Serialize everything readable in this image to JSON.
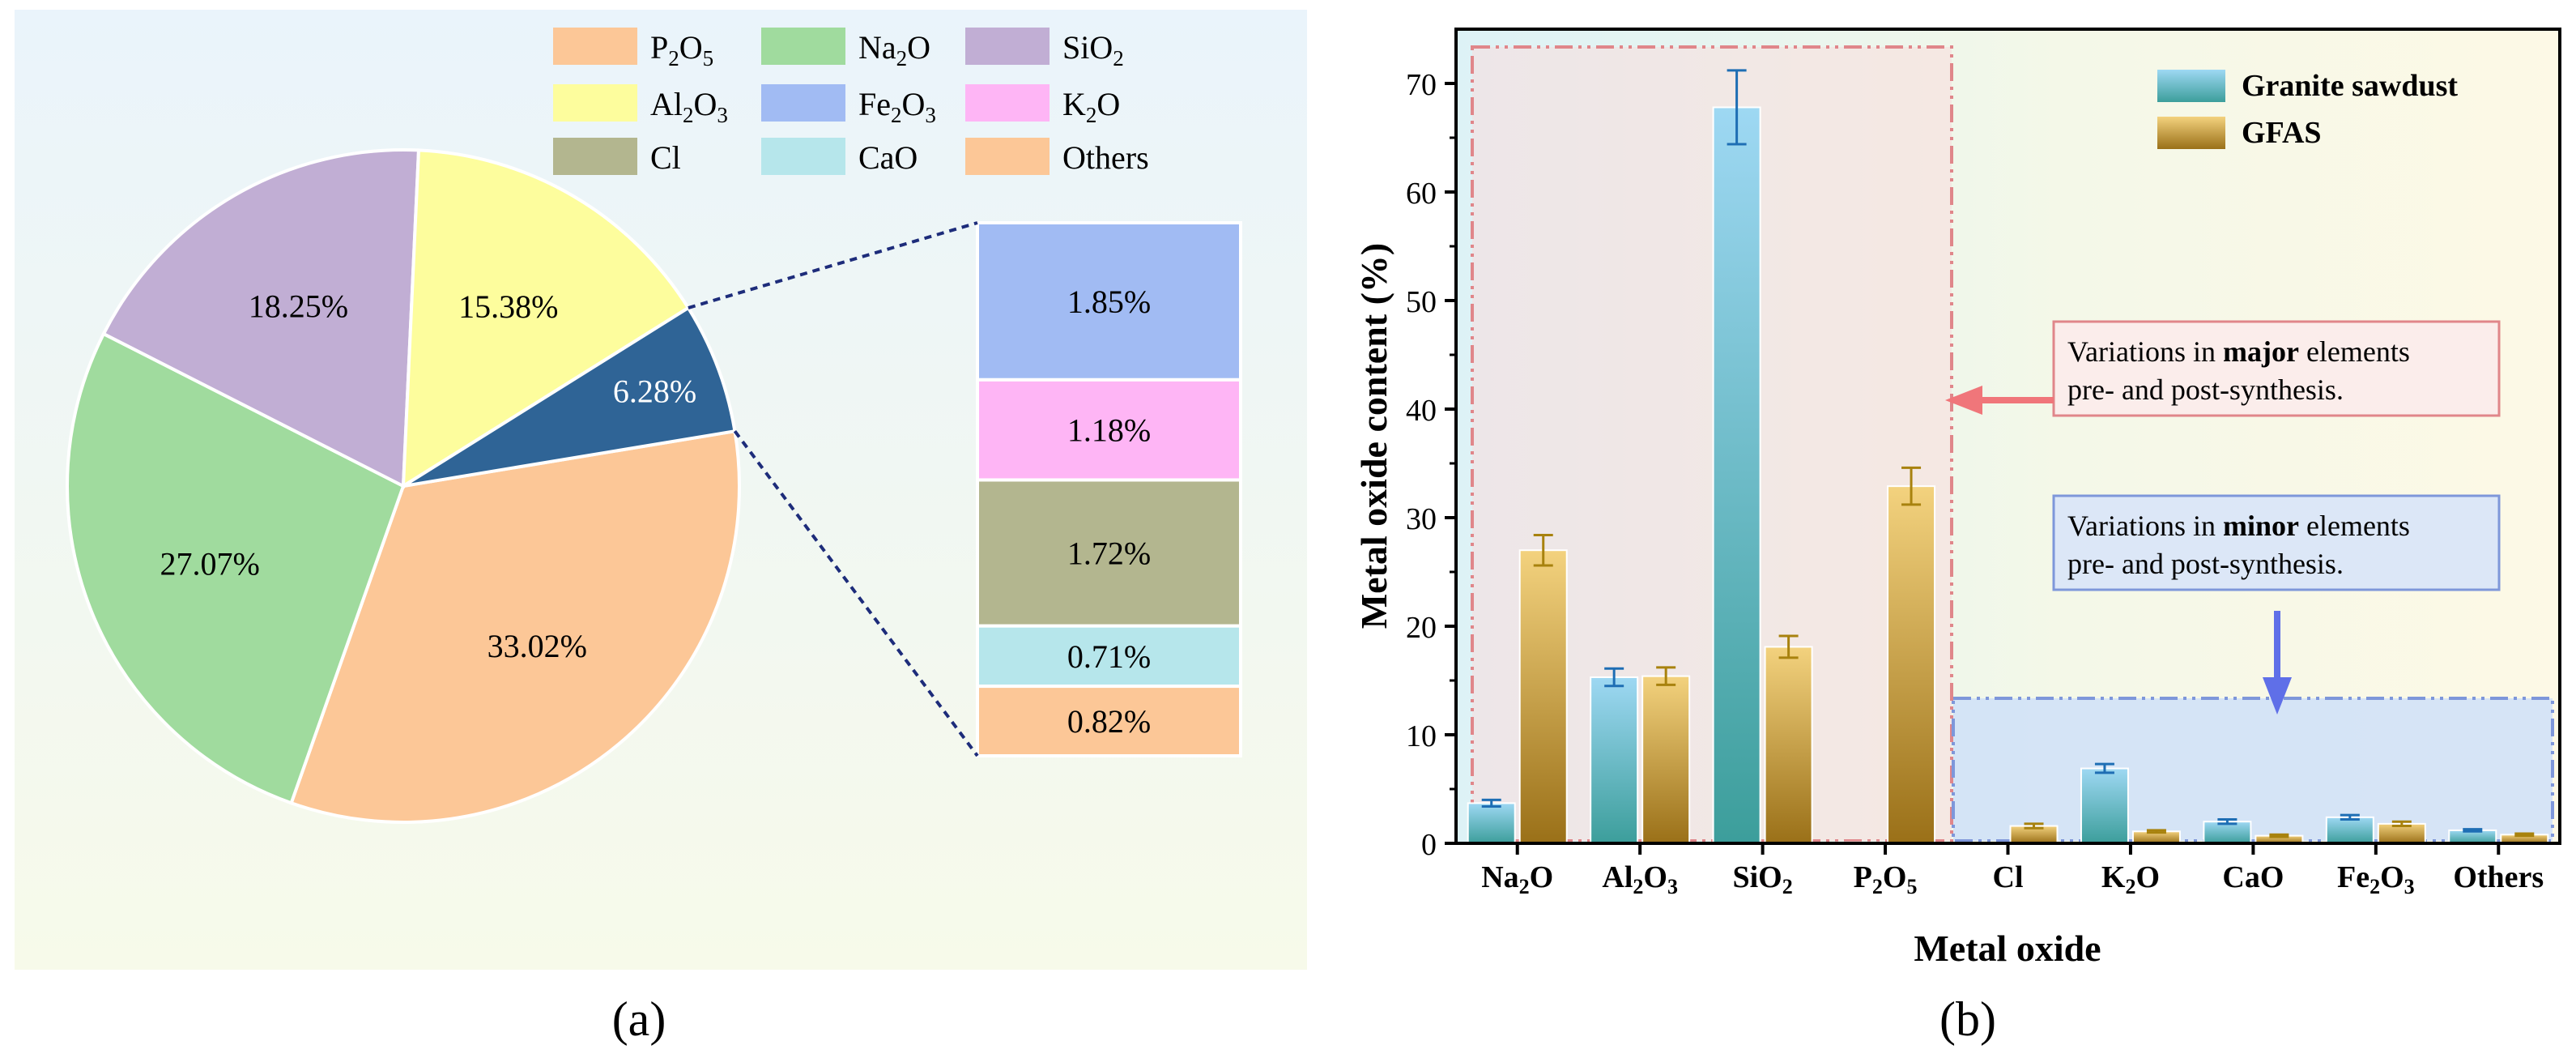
{
  "panel_labels": {
    "a": "(a)",
    "b": "(b)"
  },
  "colors": {
    "P2O5": "#FCC797",
    "Na2O": "#A0DB9E",
    "SiO2": "#C1AED4",
    "Al2O3": "#FDFD9D",
    "Fe2O3": "#A1BBF3",
    "K2O": "#FEB5F5",
    "Cl": "#B3B68F",
    "CaO": "#B6E6EB",
    "Others": "#FCC797",
    "minor_slice": "#2F6496",
    "granite_top": "#9ED8F3",
    "granite_bottom": "#3C9E9B",
    "gfas_top": "#F3D27E",
    "gfas_bottom": "#9A7018",
    "major_box": "#E0868A",
    "minor_box": "#7E97DA",
    "arrow_major": "#F0767A",
    "arrow_minor": "#5F6FE8"
  },
  "chart_data": [
    {
      "type": "pie",
      "legend": [
        {
          "key": "P2O5",
          "base": "P",
          "sub1": "2",
          "mid": "O",
          "sub2": "5"
        },
        {
          "key": "Na2O",
          "base": "Na",
          "sub1": "2",
          "mid": "O",
          "sub2": ""
        },
        {
          "key": "SiO2",
          "base": "SiO",
          "sub1": "2",
          "mid": "",
          "sub2": ""
        },
        {
          "key": "Al2O3",
          "base": "Al",
          "sub1": "2",
          "mid": "O",
          "sub2": "3"
        },
        {
          "key": "Fe2O3",
          "base": "Fe",
          "sub1": "2",
          "mid": "O",
          "sub2": "3"
        },
        {
          "key": "K2O",
          "base": "K",
          "sub1": "2",
          "mid": "O",
          "sub2": ""
        },
        {
          "key": "Cl",
          "base": "Cl",
          "sub1": "",
          "mid": "",
          "sub2": ""
        },
        {
          "key": "CaO",
          "base": "CaO",
          "sub1": "",
          "mid": "",
          "sub2": ""
        },
        {
          "key": "Others",
          "base": "Others",
          "sub1": "",
          "mid": "",
          "sub2": ""
        }
      ],
      "slices": [
        {
          "key": "P2O5",
          "value": 33.02,
          "label": "33.02%"
        },
        {
          "key": "Na2O",
          "value": 27.07,
          "label": "27.07%"
        },
        {
          "key": "SiO2",
          "value": 18.25,
          "label": "18.25%"
        },
        {
          "key": "Al2O3",
          "value": 15.38,
          "label": "15.38%"
        },
        {
          "key": "minor_slice",
          "value": 6.28,
          "label": "6.28%"
        }
      ],
      "breakdown": [
        {
          "key": "Fe2O3",
          "value": 1.85,
          "label": "1.85%"
        },
        {
          "key": "K2O",
          "value": 1.18,
          "label": "1.18%"
        },
        {
          "key": "Cl",
          "value": 1.72,
          "label": "1.72%"
        },
        {
          "key": "CaO",
          "value": 0.71,
          "label": "0.71%"
        },
        {
          "key": "Others",
          "value": 0.82,
          "label": "0.82%"
        }
      ]
    },
    {
      "type": "bar",
      "ylabel": "Metal oxide content (%)",
      "xlabel": "Metal oxide",
      "ylim": [
        0,
        75
      ],
      "yticks": [
        0,
        10,
        20,
        30,
        40,
        50,
        60,
        70
      ],
      "categories": [
        {
          "base": "Na",
          "sub1": "2",
          "mid": "O",
          "sub2": ""
        },
        {
          "base": "Al",
          "sub1": "2",
          "mid": "O",
          "sub2": "3"
        },
        {
          "base": "SiO",
          "sub1": "2",
          "mid": "",
          "sub2": ""
        },
        {
          "base": "P",
          "sub1": "2",
          "mid": "O",
          "sub2": "5"
        },
        {
          "base": "Cl",
          "sub1": "",
          "mid": "",
          "sub2": ""
        },
        {
          "base": "K",
          "sub1": "2",
          "mid": "O",
          "sub2": ""
        },
        {
          "base": "CaO",
          "sub1": "",
          "mid": "",
          "sub2": ""
        },
        {
          "base": "Fe",
          "sub1": "2",
          "mid": "O",
          "sub2": "3"
        },
        {
          "base": "Others",
          "sub1": "",
          "mid": "",
          "sub2": ""
        }
      ],
      "series": [
        {
          "name": "Granite sawdust",
          "values": [
            3.7,
            15.3,
            67.8,
            0.1,
            0,
            6.9,
            2.0,
            2.4,
            1.2
          ],
          "errors": [
            0.3,
            0.8,
            3.4,
            0,
            0,
            0.4,
            0.2,
            0.2,
            0.1
          ]
        },
        {
          "name": "GFAS",
          "values": [
            27.0,
            15.4,
            18.1,
            32.9,
            1.6,
            1.1,
            0.7,
            1.8,
            0.8
          ],
          "errors": [
            1.4,
            0.8,
            1.0,
            1.7,
            0.2,
            0.1,
            0.1,
            0.2,
            0.1
          ]
        }
      ],
      "annotations": {
        "major": {
          "pre": "Variations in ",
          "bold": "major",
          "post": " elements",
          "line2": "pre- and post-synthesis."
        },
        "minor": {
          "pre": "Variations in ",
          "bold": "minor",
          "post": " elements",
          "line2": "pre- and post-synthesis."
        }
      }
    }
  ]
}
